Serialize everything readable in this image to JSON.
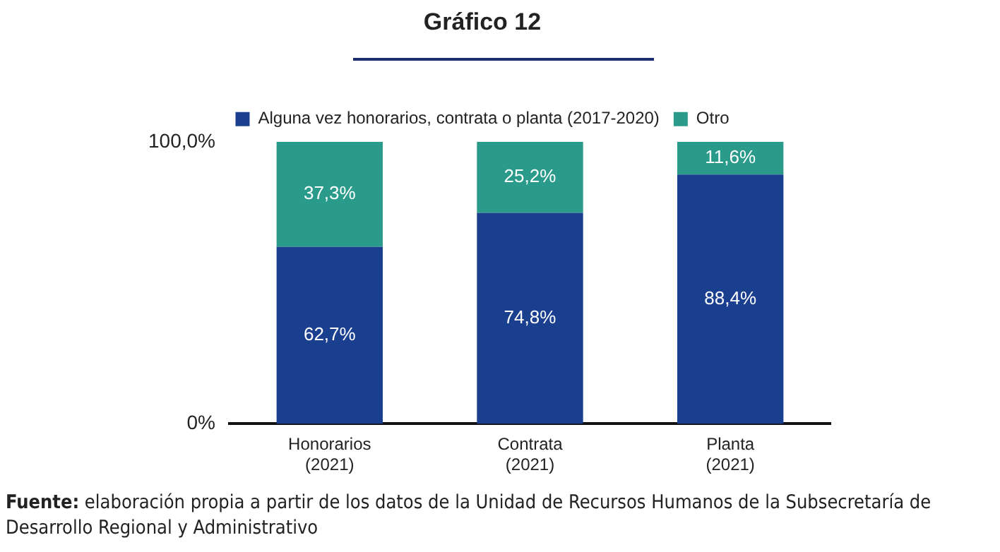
{
  "chart_data": {
    "type": "bar",
    "title": "Gráfico 12",
    "stacked": true,
    "categories": [
      "Honorarios\n(2021)",
      "Contrata\n(2021)",
      "Planta\n(2021)"
    ],
    "series": [
      {
        "name": "Alguna vez honorarios, contrata o planta (2017-2020)",
        "color": "#1b3f8f",
        "values": [
          62.7,
          74.8,
          88.4
        ],
        "value_labels": [
          "62,7%",
          "74,8%",
          "88,4%"
        ]
      },
      {
        "name": "Otro",
        "color": "#2a9a8a",
        "values": [
          37.3,
          25.2,
          11.6
        ],
        "value_labels": [
          "37,3%",
          "25,2%",
          "11,6%"
        ]
      }
    ],
    "ylim": [
      0,
      100
    ],
    "yticks": [
      {
        "value": 0,
        "label": "0%"
      },
      {
        "value": 100,
        "label": "100,0%"
      }
    ],
    "grid": false,
    "legend": "top",
    "annotations": [
      "Fuente: elaboración propia a partir de los datos de la Unidad de Recursos Humanos de la Subsecretaría de Desarrollo Regional y Administrativo"
    ]
  }
}
